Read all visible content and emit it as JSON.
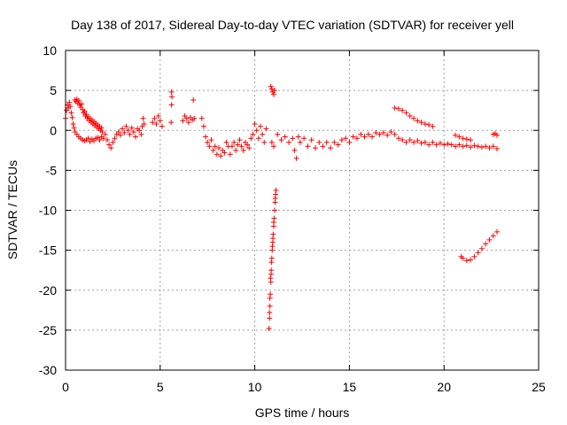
{
  "chart_data": {
    "type": "scatter",
    "title": "Day 138 of 2017, Sidereal Day-to-day VTEC variation (SDTVAR) for receiver yell",
    "xlabel": "GPS time / hours",
    "ylabel": "SDTVAR / TECUs",
    "xlim": [
      0,
      25
    ],
    "ylim": [
      -30,
      10
    ],
    "xticks": [
      0,
      5,
      10,
      15,
      20,
      25
    ],
    "yticks": [
      -30,
      -25,
      -20,
      -15,
      -10,
      -5,
      0,
      5,
      10
    ],
    "xtick_labels": [
      "0",
      "5",
      "10",
      "15",
      "20",
      "25"
    ],
    "ytick_labels": [
      "-30",
      "-25",
      "-20",
      "-15",
      "-10",
      "-5",
      "0",
      "5",
      "10"
    ],
    "grid": true,
    "marker": "+",
    "color": "#ff0000",
    "series": [
      {
        "name": "SDTVAR",
        "points": [
          [
            0.0,
            1.5
          ],
          [
            0.05,
            2.5
          ],
          [
            0.1,
            3.2
          ],
          [
            0.15,
            2.8
          ],
          [
            0.2,
            3.5
          ],
          [
            0.25,
            3.0
          ],
          [
            0.3,
            2.2
          ],
          [
            0.35,
            1.6
          ],
          [
            0.4,
            0.8
          ],
          [
            0.45,
            0.3
          ],
          [
            0.5,
            3.8
          ],
          [
            0.55,
            3.6
          ],
          [
            0.6,
            3.9
          ],
          [
            0.65,
            3.4
          ],
          [
            0.7,
            3.7
          ],
          [
            0.75,
            3.2
          ],
          [
            0.8,
            2.9
          ],
          [
            0.85,
            3.3
          ],
          [
            0.9,
            2.6
          ],
          [
            0.95,
            2.2
          ],
          [
            1.0,
            2.4
          ],
          [
            1.05,
            1.8
          ],
          [
            1.1,
            2.0
          ],
          [
            1.15,
            1.5
          ],
          [
            1.2,
            1.7
          ],
          [
            1.25,
            1.2
          ],
          [
            1.3,
            1.5
          ],
          [
            1.35,
            1.0
          ],
          [
            1.4,
            1.3
          ],
          [
            1.45,
            0.8
          ],
          [
            1.5,
            1.1
          ],
          [
            1.55,
            0.6
          ],
          [
            1.6,
            0.9
          ],
          [
            1.65,
            0.4
          ],
          [
            1.7,
            0.7
          ],
          [
            1.75,
            0.2
          ],
          [
            1.8,
            0.5
          ],
          [
            1.85,
            0.0
          ],
          [
            1.9,
            0.3
          ],
          [
            1.95,
            -0.2
          ],
          [
            0.5,
            -0.2
          ],
          [
            0.6,
            -0.5
          ],
          [
            0.7,
            -0.8
          ],
          [
            0.8,
            -1.0
          ],
          [
            0.9,
            -1.2
          ],
          [
            1.0,
            -1.3
          ],
          [
            1.1,
            -1.2
          ],
          [
            1.2,
            -1.0
          ],
          [
            1.3,
            -1.4
          ],
          [
            1.4,
            -1.1
          ],
          [
            1.5,
            -1.3
          ],
          [
            1.6,
            -1.0
          ],
          [
            1.7,
            -0.9
          ],
          [
            1.8,
            -1.2
          ],
          [
            1.9,
            -0.8
          ],
          [
            2.0,
            -1.0
          ],
          [
            2.1,
            -0.5
          ],
          [
            2.2,
            -1.2
          ],
          [
            2.3,
            -1.8
          ],
          [
            2.4,
            -2.2
          ],
          [
            2.5,
            -1.5
          ],
          [
            2.6,
            -1.0
          ],
          [
            2.7,
            -0.5
          ],
          [
            2.8,
            -0.2
          ],
          [
            2.9,
            -0.6
          ],
          [
            3.0,
            0.2
          ],
          [
            3.1,
            -0.3
          ],
          [
            3.2,
            0.5
          ],
          [
            3.3,
            0.0
          ],
          [
            3.4,
            -0.5
          ],
          [
            3.5,
            0.3
          ],
          [
            3.6,
            -0.2
          ],
          [
            3.7,
            -0.8
          ],
          [
            3.8,
            0.2
          ],
          [
            3.9,
            0.0
          ],
          [
            4.0,
            -0.5
          ],
          [
            4.05,
            0.5
          ],
          [
            4.1,
            1.5
          ],
          [
            4.15,
            0.8
          ],
          [
            4.6,
            1.0
          ],
          [
            4.7,
            1.5
          ],
          [
            4.8,
            0.8
          ],
          [
            4.9,
            1.8
          ],
          [
            5.0,
            1.2
          ],
          [
            5.1,
            0.5
          ],
          [
            5.6,
            4.8
          ],
          [
            5.62,
            4.2
          ],
          [
            5.6,
            3.2
          ],
          [
            5.58,
            1.0
          ],
          [
            6.2,
            1.2
          ],
          [
            6.3,
            1.8
          ],
          [
            6.4,
            1.5
          ],
          [
            6.5,
            1.0
          ],
          [
            6.6,
            1.6
          ],
          [
            6.7,
            1.3
          ],
          [
            6.75,
            3.8
          ],
          [
            6.8,
            1.5
          ],
          [
            7.2,
            1.5
          ],
          [
            7.3,
            0.5
          ],
          [
            7.4,
            -0.8
          ],
          [
            7.5,
            -1.5
          ],
          [
            7.6,
            -2.0
          ],
          [
            7.7,
            -1.2
          ],
          [
            7.8,
            -2.5
          ],
          [
            7.9,
            -2.0
          ],
          [
            8.0,
            -3.0
          ],
          [
            8.1,
            -2.2
          ],
          [
            8.2,
            -3.2
          ],
          [
            8.3,
            -2.5
          ],
          [
            8.4,
            -2.8
          ],
          [
            8.5,
            -1.5
          ],
          [
            8.6,
            -2.0
          ],
          [
            8.7,
            -3.0
          ],
          [
            8.8,
            -2.0
          ],
          [
            8.9,
            -1.5
          ],
          [
            9.0,
            -2.5
          ],
          [
            9.1,
            -1.8
          ],
          [
            9.2,
            -1.2
          ],
          [
            9.3,
            -2.0
          ],
          [
            9.4,
            -2.5
          ],
          [
            9.5,
            -1.5
          ],
          [
            9.6,
            -1.8
          ],
          [
            9.7,
            -2.2
          ],
          [
            9.8,
            -1.0
          ],
          [
            9.9,
            -0.5
          ],
          [
            10.0,
            0.8
          ],
          [
            10.1,
            0.0
          ],
          [
            10.2,
            -1.0
          ],
          [
            10.3,
            0.5
          ],
          [
            10.4,
            -0.5
          ],
          [
            10.5,
            -1.5
          ],
          [
            10.6,
            0.2
          ],
          [
            10.85,
            5.5
          ],
          [
            10.9,
            5.2
          ],
          [
            10.95,
            4.8
          ],
          [
            11.0,
            4.5
          ],
          [
            11.05,
            5.0
          ],
          [
            10.75,
            -24.8
          ],
          [
            10.78,
            -23.5
          ],
          [
            10.8,
            -22.0
          ],
          [
            10.82,
            -20.5
          ],
          [
            10.85,
            -19.0
          ],
          [
            10.87,
            -17.5
          ],
          [
            10.9,
            -16.0
          ],
          [
            10.92,
            -15.0
          ],
          [
            10.95,
            -14.0
          ],
          [
            10.97,
            -13.0
          ],
          [
            11.0,
            -12.0
          ],
          [
            11.02,
            -11.0
          ],
          [
            11.05,
            -10.0
          ],
          [
            11.07,
            -9.0
          ],
          [
            11.1,
            -8.0
          ],
          [
            11.12,
            -7.5
          ],
          [
            10.8,
            -21.0
          ],
          [
            10.83,
            -18.5
          ],
          [
            10.88,
            -16.5
          ],
          [
            10.93,
            -14.5
          ],
          [
            11.0,
            -11.5
          ],
          [
            11.08,
            -8.5
          ],
          [
            10.78,
            -22.8
          ],
          [
            10.86,
            -18.0
          ],
          [
            10.96,
            -13.5
          ],
          [
            10.9,
            -1.5
          ],
          [
            11.0,
            -2.0
          ],
          [
            11.2,
            -0.5
          ],
          [
            11.4,
            -1.2
          ],
          [
            11.6,
            -0.8
          ],
          [
            11.8,
            -1.5
          ],
          [
            12.0,
            -1.0
          ],
          [
            12.1,
            -2.5
          ],
          [
            12.2,
            -3.5
          ],
          [
            12.3,
            -0.8
          ],
          [
            12.4,
            -1.5
          ],
          [
            12.6,
            -1.0
          ],
          [
            12.8,
            -2.0
          ],
          [
            13.0,
            -1.2
          ],
          [
            13.2,
            -2.2
          ],
          [
            13.4,
            -1.5
          ],
          [
            13.6,
            -2.0
          ],
          [
            13.8,
            -1.5
          ],
          [
            14.0,
            -2.2
          ],
          [
            14.2,
            -1.5
          ],
          [
            14.4,
            -1.8
          ],
          [
            14.6,
            -1.2
          ],
          [
            14.8,
            -1.0
          ],
          [
            15.0,
            -1.5
          ],
          [
            15.2,
            -0.8
          ],
          [
            15.4,
            -1.0
          ],
          [
            15.6,
            -0.5
          ],
          [
            15.8,
            -0.8
          ],
          [
            16.0,
            -0.5
          ],
          [
            16.2,
            -0.8
          ],
          [
            16.4,
            -0.3
          ],
          [
            16.6,
            -0.5
          ],
          [
            16.8,
            -0.3
          ],
          [
            17.0,
            -0.6
          ],
          [
            17.2,
            -0.2
          ],
          [
            17.4,
            -0.5
          ],
          [
            17.6,
            -1.0
          ],
          [
            17.8,
            -1.2
          ],
          [
            18.0,
            -1.5
          ],
          [
            18.2,
            -1.2
          ],
          [
            18.4,
            -1.5
          ],
          [
            18.6,
            -1.3
          ],
          [
            18.8,
            -1.6
          ],
          [
            19.0,
            -1.5
          ],
          [
            19.2,
            -1.8
          ],
          [
            19.4,
            -1.5
          ],
          [
            19.6,
            -1.8
          ],
          [
            19.8,
            -1.6
          ],
          [
            20.0,
            -1.8
          ],
          [
            20.2,
            -1.7
          ],
          [
            20.4,
            -1.8
          ],
          [
            20.6,
            -2.0
          ],
          [
            20.8,
            -1.8
          ],
          [
            21.0,
            -2.0
          ],
          [
            21.2,
            -1.9
          ],
          [
            21.4,
            -2.1
          ],
          [
            21.6,
            -1.9
          ],
          [
            21.8,
            -2.0
          ],
          [
            22.0,
            -2.1
          ],
          [
            22.2,
            -2.0
          ],
          [
            22.4,
            -2.2
          ],
          [
            22.6,
            -2.0
          ],
          [
            22.8,
            -2.3
          ],
          [
            17.4,
            2.8
          ],
          [
            17.6,
            2.7
          ],
          [
            17.8,
            2.5
          ],
          [
            18.0,
            2.2
          ],
          [
            18.2,
            1.8
          ],
          [
            18.4,
            1.5
          ],
          [
            18.6,
            1.2
          ],
          [
            18.8,
            1.0
          ],
          [
            19.0,
            0.8
          ],
          [
            19.2,
            0.7
          ],
          [
            19.4,
            0.5
          ],
          [
            20.6,
            -0.6
          ],
          [
            20.8,
            -0.8
          ],
          [
            21.0,
            -1.0
          ],
          [
            21.2,
            -1.1
          ],
          [
            21.4,
            -1.2
          ],
          [
            22.6,
            -0.5
          ],
          [
            22.7,
            -0.4
          ],
          [
            22.8,
            -0.6
          ],
          [
            20.9,
            -15.8
          ],
          [
            21.0,
            -16.0
          ],
          [
            21.2,
            -16.3
          ],
          [
            21.4,
            -16.2
          ],
          [
            21.6,
            -15.8
          ],
          [
            21.8,
            -15.3
          ],
          [
            22.0,
            -14.8
          ],
          [
            22.2,
            -14.2
          ],
          [
            22.4,
            -13.7
          ],
          [
            22.6,
            -13.2
          ],
          [
            22.8,
            -12.7
          ]
        ]
      }
    ]
  }
}
